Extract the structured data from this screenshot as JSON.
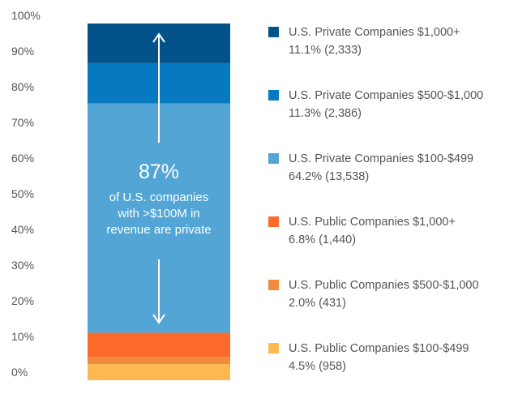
{
  "chart_data": {
    "type": "bar",
    "stacked": true,
    "title": "",
    "xlabel": "",
    "ylabel": "",
    "ylim": [
      0,
      100
    ],
    "y_ticks": [
      "0%",
      "10%",
      "20%",
      "30%",
      "40%",
      "50%",
      "60%",
      "70%",
      "80%",
      "90%",
      "100%"
    ],
    "series": [
      {
        "name": "U.S. Public Companies $100-$499",
        "percent": 4.5,
        "count": 958,
        "label": "4.5% (958)",
        "color": "#fdb94f"
      },
      {
        "name": "U.S. Public Companies $500-$1,000",
        "percent": 2.0,
        "count": 431,
        "label": "2.0% (431)",
        "color": "#f08c3c"
      },
      {
        "name": "U.S. Public Companies $1,000+",
        "percent": 6.8,
        "count": 1440,
        "label": "6.8% (1,440)",
        "color": "#fc6a2c"
      },
      {
        "name": "U.S. Private Companies $100-$499",
        "percent": 64.2,
        "count": 13538,
        "label": "64.2% (13,538)",
        "color": "#52a5d4"
      },
      {
        "name": "U.S. Private Companies $500-$1,000",
        "percent": 11.3,
        "count": 2386,
        "label": "11.3% (2,386)",
        "color": "#0679c0"
      },
      {
        "name": "U.S. Private Companies $1,000+",
        "percent": 11.1,
        "count": 2333,
        "label": "11.1% (2,333)",
        "color": "#03528a"
      }
    ],
    "annotation": {
      "big": "87%",
      "lines": [
        "of U.S. companies",
        "with >$100M in",
        "revenue are private"
      ]
    },
    "legend_placement": "right"
  }
}
